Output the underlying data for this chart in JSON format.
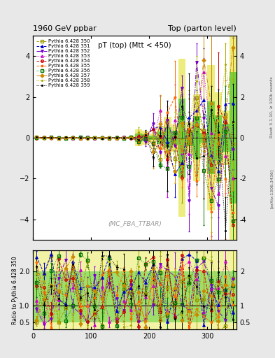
{
  "title_left": "1960 GeV ppbar",
  "title_right": "Top (parton level)",
  "plot_title": "pT (top) (Mtt < 450)",
  "watermark": "(MC_FBA_TTBAR)",
  "right_label": "Rivet 3.1.10, ≥ 100k events",
  "arxiv_label": "[arXiv:1306.3436]",
  "ylabel_ratio": "Ratio to Pythia 6.428 350",
  "xlim": [
    0,
    350
  ],
  "ylim_main": [
    -5,
    5
  ],
  "ylim_ratio": [
    0.3,
    2.6
  ],
  "yticks_main": [
    -4,
    -2,
    0,
    2,
    4
  ],
  "yticks_ratio": [
    0.5,
    1,
    2
  ],
  "xticks": [
    0,
    100,
    200,
    300
  ],
  "series": [
    {
      "label": "Pythia 6.428 350",
      "color": "#999900",
      "marker": "s",
      "ls": "--",
      "mfc": "none"
    },
    {
      "label": "Pythia 6.428 351",
      "color": "#0000cc",
      "marker": "^",
      "ls": "--",
      "mfc": "#0000cc"
    },
    {
      "label": "Pythia 6.428 352",
      "color": "#7700cc",
      "marker": "v",
      "ls": "-.",
      "mfc": "#7700cc"
    },
    {
      "label": "Pythia 6.428 353",
      "color": "#cc00cc",
      "marker": "^",
      "ls": ":",
      "mfc": "none"
    },
    {
      "label": "Pythia 6.428 354",
      "color": "#cc0000",
      "marker": "o",
      "ls": "--",
      "mfc": "none"
    },
    {
      "label": "Pythia 6.428 355",
      "color": "#ff6600",
      "marker": "*",
      "ls": "--",
      "mfc": "#ff6600"
    },
    {
      "label": "Pythia 6.428 356",
      "color": "#007700",
      "marker": "s",
      "ls": ":",
      "mfc": "none"
    },
    {
      "label": "Pythia 6.428 357",
      "color": "#cc8800",
      "marker": "D",
      "ls": "-.",
      "mfc": "#cc8800"
    },
    {
      "label": "Pythia 6.428 358",
      "color": "#aaaa00",
      "marker": ".",
      "ls": ":",
      "mfc": "#aaaa00"
    },
    {
      "label": "Pythia 6.428 359",
      "color": "#000000",
      "marker": ".",
      "ls": ":",
      "mfc": "#000000"
    }
  ],
  "bg_color": "#e8e8e8",
  "plot_bg": "#ffffff",
  "green_band_color": "#00bb00",
  "yellow_band_color": "#dddd00"
}
